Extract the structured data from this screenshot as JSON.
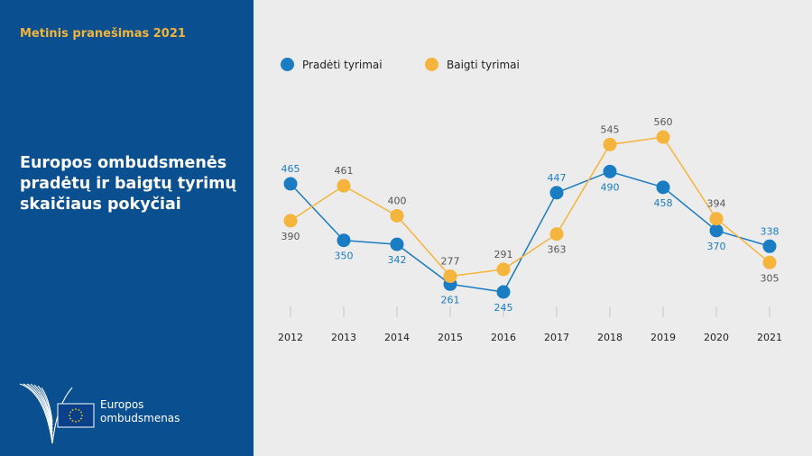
{
  "header": {
    "report_label": "Metinis pranešimas 2021"
  },
  "sidebar": {
    "title": "Europos ombudsmenės pradėtų ir baigtų tyrimų skaičiaus pokyčiai",
    "logo_line1": "Europos",
    "logo_line2": "ombudsmenas"
  },
  "colors": {
    "sidebar": "#0a4f8f",
    "started": "#1a7cc3",
    "closed": "#f5b43c",
    "accent": "#f2b43a"
  },
  "chart_data": {
    "type": "line",
    "x": [
      "2012",
      "2013",
      "2014",
      "2015",
      "2016",
      "2017",
      "2018",
      "2019",
      "2020",
      "2021"
    ],
    "series": [
      {
        "name": "Pradėti tyrimai",
        "values": [
          465,
          350,
          342,
          261,
          245,
          447,
          490,
          458,
          370,
          338
        ],
        "color": "#1a7cc3"
      },
      {
        "name": "Baigti tyrimai",
        "values": [
          390,
          461,
          400,
          277,
          291,
          363,
          545,
          560,
          394,
          305
        ],
        "color": "#f5b43c"
      }
    ],
    "legend": "top-left",
    "grid": false
  }
}
